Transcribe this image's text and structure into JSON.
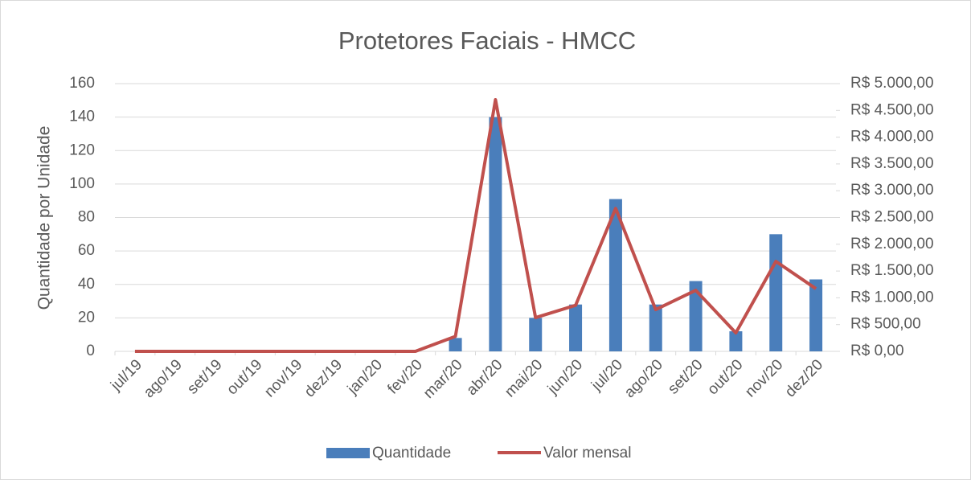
{
  "chart_data": {
    "type": "bar",
    "title": "Protetores Faciais - HMCC",
    "y_label": "Quantidade por Unidade",
    "categories": [
      "jul/19",
      "ago/19",
      "set/19",
      "out/19",
      "nov/19",
      "dez/19",
      "jan/20",
      "fev/20",
      "mar/20",
      "abr/20",
      "mai/20",
      "jun/20",
      "jul/20",
      "ago/20",
      "set/20",
      "out/20",
      "nov/20",
      "dez/20"
    ],
    "series": [
      {
        "name": "Quantidade",
        "type": "bar",
        "color": "#4a7ebb",
        "values": [
          0,
          0,
          0,
          0,
          0,
          0,
          0,
          0,
          8,
          140,
          20,
          28,
          91,
          28,
          42,
          12,
          70,
          43
        ]
      },
      {
        "name": "Valor mensal",
        "type": "line",
        "color": "#c0504d",
        "axis": "y2",
        "values": [
          0,
          0,
          0,
          0,
          0,
          0,
          0,
          0,
          280,
          4700,
          630,
          860,
          2670,
          780,
          1140,
          345,
          1680,
          1170
        ]
      }
    ],
    "ylim": [
      0,
      160
    ],
    "yticks": [
      0,
      20,
      40,
      60,
      80,
      100,
      120,
      140,
      160
    ],
    "y2lim": [
      0,
      5000
    ],
    "y2ticks": [
      {
        "value": 0,
        "label": "R$ 0,00"
      },
      {
        "value": 500,
        "label": "R$ 500,00"
      },
      {
        "value": 1000,
        "label": "R$ 1.000,00"
      },
      {
        "value": 1500,
        "label": "R$ 1.500,00"
      },
      {
        "value": 2000,
        "label": "R$ 2.000,00"
      },
      {
        "value": 2500,
        "label": "R$ 2.500,00"
      },
      {
        "value": 3000,
        "label": "R$ 3.000,00"
      },
      {
        "value": 3500,
        "label": "R$ 3.500,00"
      },
      {
        "value": 4000,
        "label": "R$ 4.000,00"
      },
      {
        "value": 4500,
        "label": "R$ 4.500,00"
      },
      {
        "value": 5000,
        "label": "R$ 5.000,00"
      }
    ],
    "grid": true,
    "legend": "bottom"
  }
}
